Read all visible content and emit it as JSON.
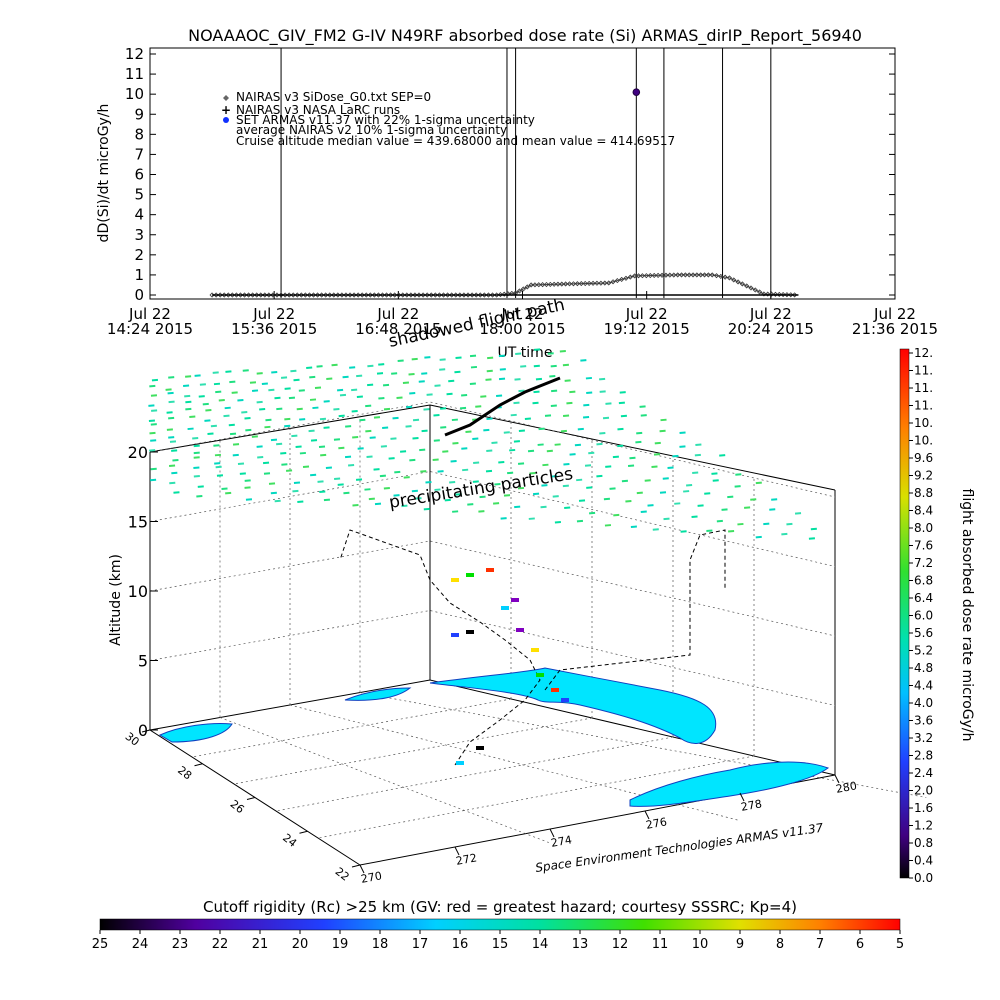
{
  "chart_data": [
    {
      "type": "line",
      "title": "NOAAAOC_GIV_FM2 G-IV    N49RF  absorbed dose rate (Si) ARMAS_dirIP_Report_56940",
      "ylabel": "dD(Si)/dt microGy/h",
      "xlabel": "UT time",
      "ylim": [
        0,
        12
      ],
      "yticks": [
        "0",
        "1",
        "2",
        "3",
        "4",
        "5",
        "6",
        "7",
        "8",
        "9",
        "10",
        "11",
        "12"
      ],
      "xlim": [
        "2015-07-22 14:24",
        "2015-07-22 21:36"
      ],
      "xticks": [
        {
          "l1": "Jul 22",
          "l2": "14:24 2015"
        },
        {
          "l1": "Jul 22",
          "l2": "15:36 2015"
        },
        {
          "l1": "Jul 22",
          "l2": "16:48 2015"
        },
        {
          "l1": "Jul 22",
          "l2": "18:00 2015"
        },
        {
          "l1": "Jul 22",
          "l2": "19:12 2015"
        },
        {
          "l1": "Jul 22",
          "l2": "20:24 2015"
        },
        {
          "l1": "Jul 22",
          "l2": "21:36 2015"
        }
      ],
      "legend_position": "top-left",
      "legend": [
        {
          "symbol": "diamond",
          "color": "#666666",
          "text": "NAIRAS v3 SiDose_G0.txt SEP=0"
        },
        {
          "symbol": "plus",
          "color": "#000000",
          "text": "NAIRAS v3 NASA LaRC runs"
        },
        {
          "symbol": "dot",
          "color": "#1030ff",
          "text": "SET ARMAS v11.37 with 22% 1-sigma uncertainty"
        },
        {
          "symbol": "none",
          "color": "#000000",
          "text": "average NAIRAS v2 10% 1-sigma uncertainty"
        },
        {
          "symbol": "none",
          "color": "#000000",
          "text": "Cruise altitude median value = 439.68000 and mean value = 414.69517"
        }
      ],
      "series": [
        {
          "name": "NAIRAS v3 SiDose_G0.txt SEP=0",
          "x": [
            "15:00",
            "15:40",
            "16:20",
            "17:00",
            "17:45",
            "17:56",
            "18:05",
            "18:25",
            "18:50",
            "19:05",
            "19:30",
            "19:50",
            "20:00",
            "20:10",
            "20:20",
            "20:40"
          ],
          "y": [
            0,
            0,
            0,
            0,
            0,
            0.1,
            0.5,
            0.55,
            0.6,
            0.95,
            1.0,
            1.0,
            0.85,
            0.45,
            0.05,
            0
          ]
        },
        {
          "name": "NAIRAS v3 NASA LaRC runs",
          "x": [
            "15:00",
            "16:30",
            "17:50",
            "18:30",
            "19:15",
            "20:00",
            "20:40"
          ],
          "y": [
            0,
            0,
            0,
            0,
            0,
            0,
            0
          ]
        },
        {
          "name": "SET ARMAS v11.37 with 22% 1-sigma uncertainty",
          "x": [
            "19:06"
          ],
          "y": [
            10.1
          ]
        }
      ],
      "vertical_markers": [
        "15:40",
        "17:51",
        "17:56",
        "19:06",
        "19:22",
        "19:56",
        "20:24"
      ]
    },
    {
      "type": "scatter",
      "subtype": "3d-flight-path",
      "zlabel": "Altitude (km)",
      "zticks": [
        "0",
        "5",
        "10",
        "15",
        "20"
      ],
      "zlim": [
        0,
        20
      ],
      "lat_ticks": [
        "30",
        "28",
        "26",
        "24",
        "22"
      ],
      "lon_ticks": [
        "270",
        "272",
        "274",
        "276",
        "278",
        "280"
      ],
      "annotations": [
        "shadowed flight path",
        "precipitating particles"
      ],
      "credit": "Space Environment Technologies ARMAS v11.37",
      "colorbar": {
        "label": "flight absorbed dose rate microGy/h",
        "ticks": [
          "0.0",
          "0.4",
          "0.8",
          "1.2",
          "1.6",
          "2.0",
          "2.4",
          "2.8",
          "3.2",
          "3.6",
          "4.0",
          "4.4",
          "4.8",
          "5.2",
          "5.6",
          "6.0",
          "6.4",
          "6.8",
          "7.2",
          "7.6",
          "8.0",
          "8.4",
          "8.8",
          "9.2",
          "9.6",
          "10.",
          "10.",
          "11.",
          "11.",
          "11.",
          "12."
        ],
        "range": [
          0,
          12
        ]
      },
      "rigidity_bar": {
        "label": "Cutoff rigidity (Rc) >25 km (GV: red = greatest hazard; courtesy SSSRC; Kp=4)",
        "ticks": [
          "25",
          "24",
          "23",
          "22",
          "21",
          "20",
          "19",
          "18",
          "17",
          "16",
          "15",
          "14",
          "13",
          "12",
          "11",
          "10",
          "9",
          "8",
          "7",
          "6",
          "5"
        ],
        "range": [
          25,
          5
        ]
      }
    }
  ]
}
